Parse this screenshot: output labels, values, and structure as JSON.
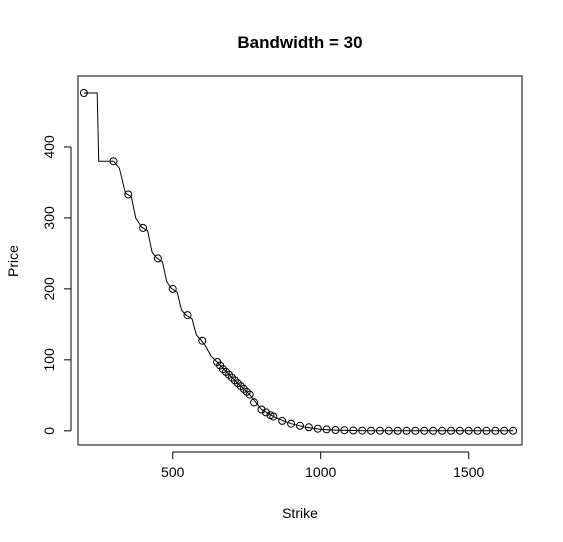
{
  "chart_data": {
    "type": "scatter",
    "title": "Bandwidth = 30",
    "xlabel": "Strike",
    "ylabel": "Price",
    "xlim": [
      180,
      1680
    ],
    "ylim": [
      -20,
      500
    ],
    "xticks": [
      500,
      1000,
      1500
    ],
    "yticks": [
      0,
      100,
      200,
      300,
      400
    ],
    "grid": false,
    "legend": "none",
    "colors": {
      "points": "#000000",
      "line": "#000000",
      "frame": "#000000"
    },
    "points": [
      [
        200,
        476
      ],
      [
        300,
        380
      ],
      [
        350,
        333
      ],
      [
        400,
        286
      ],
      [
        450,
        243
      ],
      [
        500,
        200
      ],
      [
        550,
        163
      ],
      [
        600,
        127
      ],
      [
        650,
        97
      ],
      [
        660,
        92
      ],
      [
        670,
        87
      ],
      [
        680,
        83
      ],
      [
        690,
        79
      ],
      [
        700,
        75
      ],
      [
        710,
        71
      ],
      [
        720,
        67
      ],
      [
        730,
        63
      ],
      [
        740,
        59
      ],
      [
        750,
        55
      ],
      [
        760,
        51
      ],
      [
        775,
        40
      ],
      [
        800,
        30
      ],
      [
        815,
        26
      ],
      [
        830,
        22
      ],
      [
        840,
        20
      ],
      [
        870,
        14
      ],
      [
        900,
        10
      ],
      [
        930,
        7
      ],
      [
        960,
        5
      ],
      [
        990,
        3
      ],
      [
        1020,
        2
      ],
      [
        1050,
        1.2
      ],
      [
        1080,
        0.8
      ],
      [
        1110,
        0.5
      ],
      [
        1140,
        0.3
      ],
      [
        1170,
        0.2
      ],
      [
        1200,
        0.1
      ],
      [
        1230,
        0.05
      ],
      [
        1260,
        0
      ],
      [
        1290,
        0
      ],
      [
        1320,
        0
      ],
      [
        1350,
        0
      ],
      [
        1380,
        0
      ],
      [
        1410,
        0
      ],
      [
        1440,
        0
      ],
      [
        1470,
        0
      ],
      [
        1500,
        0
      ],
      [
        1530,
        0
      ],
      [
        1560,
        0
      ],
      [
        1590,
        0
      ],
      [
        1620,
        0
      ],
      [
        1650,
        0
      ]
    ],
    "line": [
      [
        200,
        476
      ],
      [
        245,
        476
      ],
      [
        250,
        380
      ],
      [
        300,
        380
      ],
      [
        320,
        370
      ],
      [
        340,
        335
      ],
      [
        360,
        330
      ],
      [
        375,
        300
      ],
      [
        395,
        287
      ],
      [
        415,
        282
      ],
      [
        430,
        252
      ],
      [
        445,
        244
      ],
      [
        465,
        238
      ],
      [
        480,
        210
      ],
      [
        495,
        201
      ],
      [
        515,
        195
      ],
      [
        530,
        170
      ],
      [
        545,
        163
      ],
      [
        565,
        158
      ],
      [
        580,
        135
      ],
      [
        595,
        128
      ],
      [
        610,
        120
      ],
      [
        630,
        105
      ],
      [
        650,
        97
      ],
      [
        700,
        75
      ],
      [
        760,
        51
      ],
      [
        800,
        30
      ],
      [
        850,
        18
      ],
      [
        900,
        10
      ],
      [
        950,
        5
      ],
      [
        1000,
        2
      ],
      [
        1050,
        1
      ],
      [
        1100,
        0.4
      ],
      [
        1150,
        0.2
      ],
      [
        1200,
        0.1
      ],
      [
        1260,
        0
      ],
      [
        1650,
        0
      ]
    ]
  }
}
